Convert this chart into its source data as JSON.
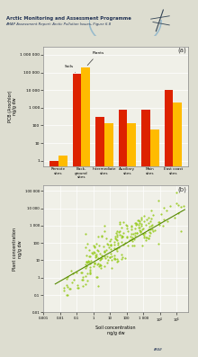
{
  "title_line1": "Arctic Monitoring and Assessment Programme",
  "title_line2": "AMAP Assessment Report: Arctic Pollution Issues, Figure 6.8",
  "bar_categories": [
    "Remote\nsites",
    "Back-\nground\nsites",
    "Intermediate\nsites",
    "Auxiliary\nsites",
    "Main\nsites",
    "East coast\nsites"
  ],
  "bar_soils": [
    1,
    80000,
    300,
    800,
    800,
    10000
  ],
  "bar_plants": [
    2,
    200000,
    130,
    130,
    60,
    2000
  ],
  "bar_color_soils": "#dd2200",
  "bar_color_plants": "#ffbb00",
  "panel_a_label": "(a)",
  "panel_b_label": "(b)",
  "panel_a_ylabel1": "PCB (Arochlor)",
  "panel_a_ylabel2": "ng/g dw",
  "panel_b_ylabel1": "Plant concentration",
  "panel_b_ylabel2": "ng/g dw",
  "panel_b_xlabel1": "Soil concentration",
  "panel_b_xlabel2": "ng/g dw",
  "scatter_color": "#99cc22",
  "line_color": "#558800",
  "bg_color": "#ddddd0",
  "plot_bg": "#f0f0e8",
  "text_color": "#223355"
}
